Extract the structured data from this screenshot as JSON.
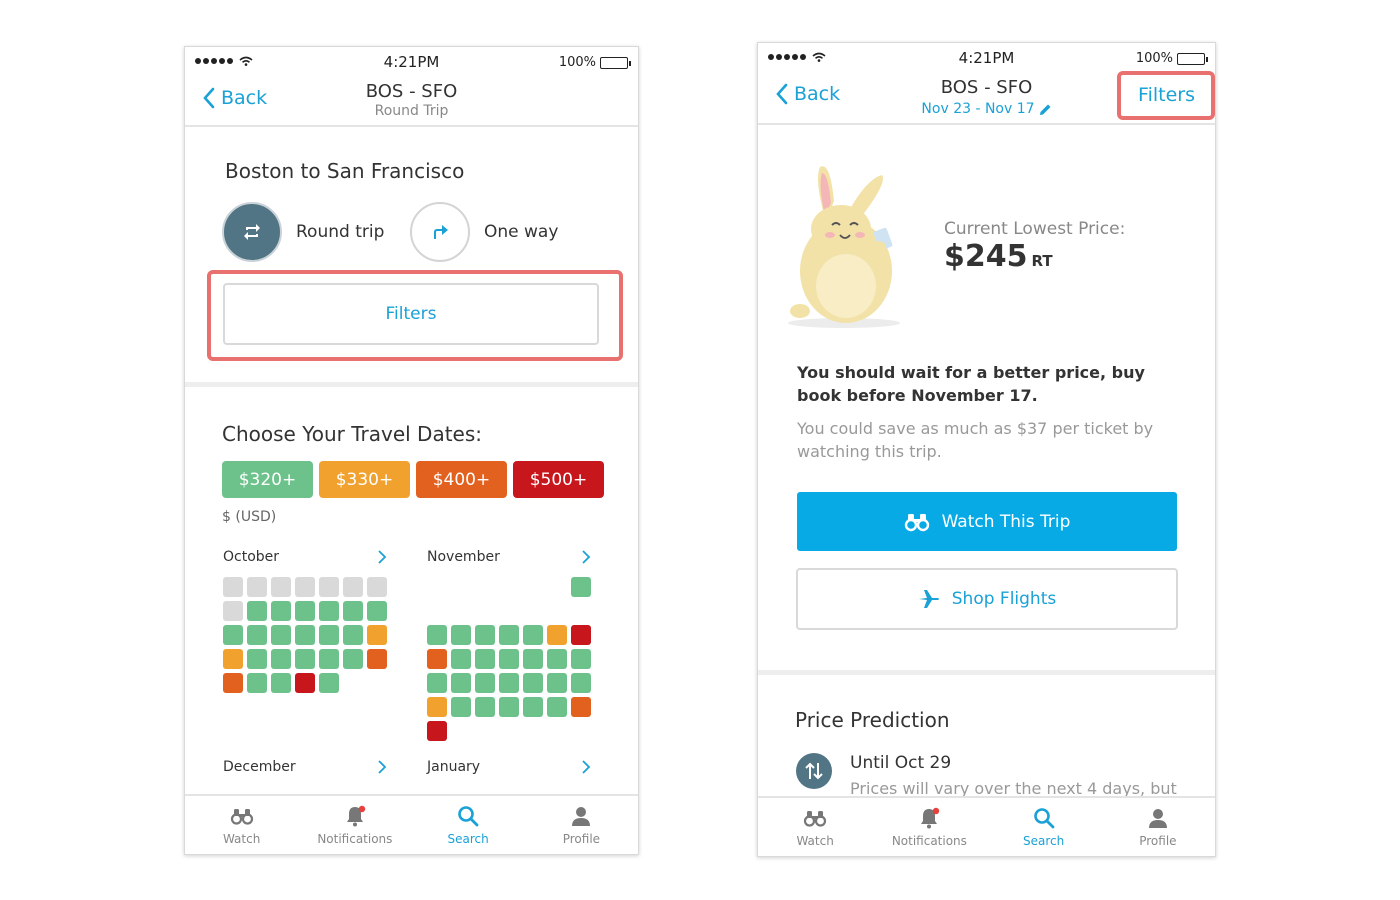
{
  "colors": {
    "accent": "#1aa1d6",
    "primary_button": "#08aae6",
    "highlight": "#e8706e",
    "green": "#6cc28a",
    "yellow": "#f1a22e",
    "orange": "#e3611f",
    "red": "#c8161d",
    "gray": "#d9d9d9",
    "slate": "#527585"
  },
  "status_bar": {
    "time": "4:21PM",
    "battery": "100%"
  },
  "screen1": {
    "nav": {
      "back_label": "Back",
      "title": "BOS - SFO",
      "subtitle": "Round Trip"
    },
    "route_title": "Boston to San Francisco",
    "trip_options": {
      "round_trip": "Round trip",
      "one_way": "One way"
    },
    "filters_label": "Filters",
    "dates_title": "Choose Your Travel Dates:",
    "legend": [
      {
        "label": "$320+",
        "color": "#6cc28a"
      },
      {
        "label": "$330+",
        "color": "#f1a22e"
      },
      {
        "label": "$400+",
        "color": "#e3611f"
      },
      {
        "label": "$500+",
        "color": "#c8161d"
      }
    ],
    "currency": "$ (USD)",
    "months": [
      {
        "name": "October",
        "cells": [
          "e",
          "e",
          "e",
          "e",
          "e",
          "e",
          "e",
          "e",
          "g",
          "g",
          "g",
          "g",
          "g",
          "g",
          "g",
          "g",
          "g",
          "g",
          "g",
          "g",
          "y",
          "y",
          "g",
          "g",
          "g",
          "g",
          "g",
          "o",
          "o",
          "g",
          "g",
          "r",
          "g"
        ]
      },
      {
        "name": "November",
        "cells": [
          "",
          "",
          "",
          "",
          "",
          "",
          "g",
          "",
          "",
          "",
          "",
          "",
          "",
          "",
          "g",
          "g",
          "g",
          "g",
          "g",
          "y",
          "r",
          "o",
          "g",
          "g",
          "g",
          "g",
          "g",
          "g",
          "g",
          "g",
          "g",
          "g",
          "g",
          "g",
          "g",
          "y",
          "g",
          "g",
          "g",
          "g",
          "g",
          "o",
          "r"
        ]
      },
      {
        "name": "December",
        "cells": []
      },
      {
        "name": "January",
        "cells": []
      }
    ]
  },
  "screen2": {
    "nav": {
      "back_label": "Back",
      "title": "BOS - SFO",
      "dates": "Nov 23 - Nov 17",
      "filters_label": "Filters"
    },
    "price_label": "Current Lowest Price:",
    "price": "$245",
    "price_suffix": "RT",
    "advice": "You should wait for a better price, buy book before November 17.",
    "advice_sub": "You could save as much as $37 per ticket by watching this trip.",
    "watch_button": "Watch This Trip",
    "shop_button": "Shop Flights",
    "prediction_title": "Price Prediction",
    "prediction_item": {
      "title": "Until Oct 29",
      "text": "Prices will vary over the next 4 days, but"
    }
  },
  "tabbar": {
    "tabs": [
      {
        "label": "Watch",
        "icon": "binoculars-icon"
      },
      {
        "label": "Notifications",
        "icon": "bell-icon"
      },
      {
        "label": "Search",
        "icon": "search-icon"
      },
      {
        "label": "Profile",
        "icon": "profile-icon"
      }
    ],
    "active": "Search"
  }
}
